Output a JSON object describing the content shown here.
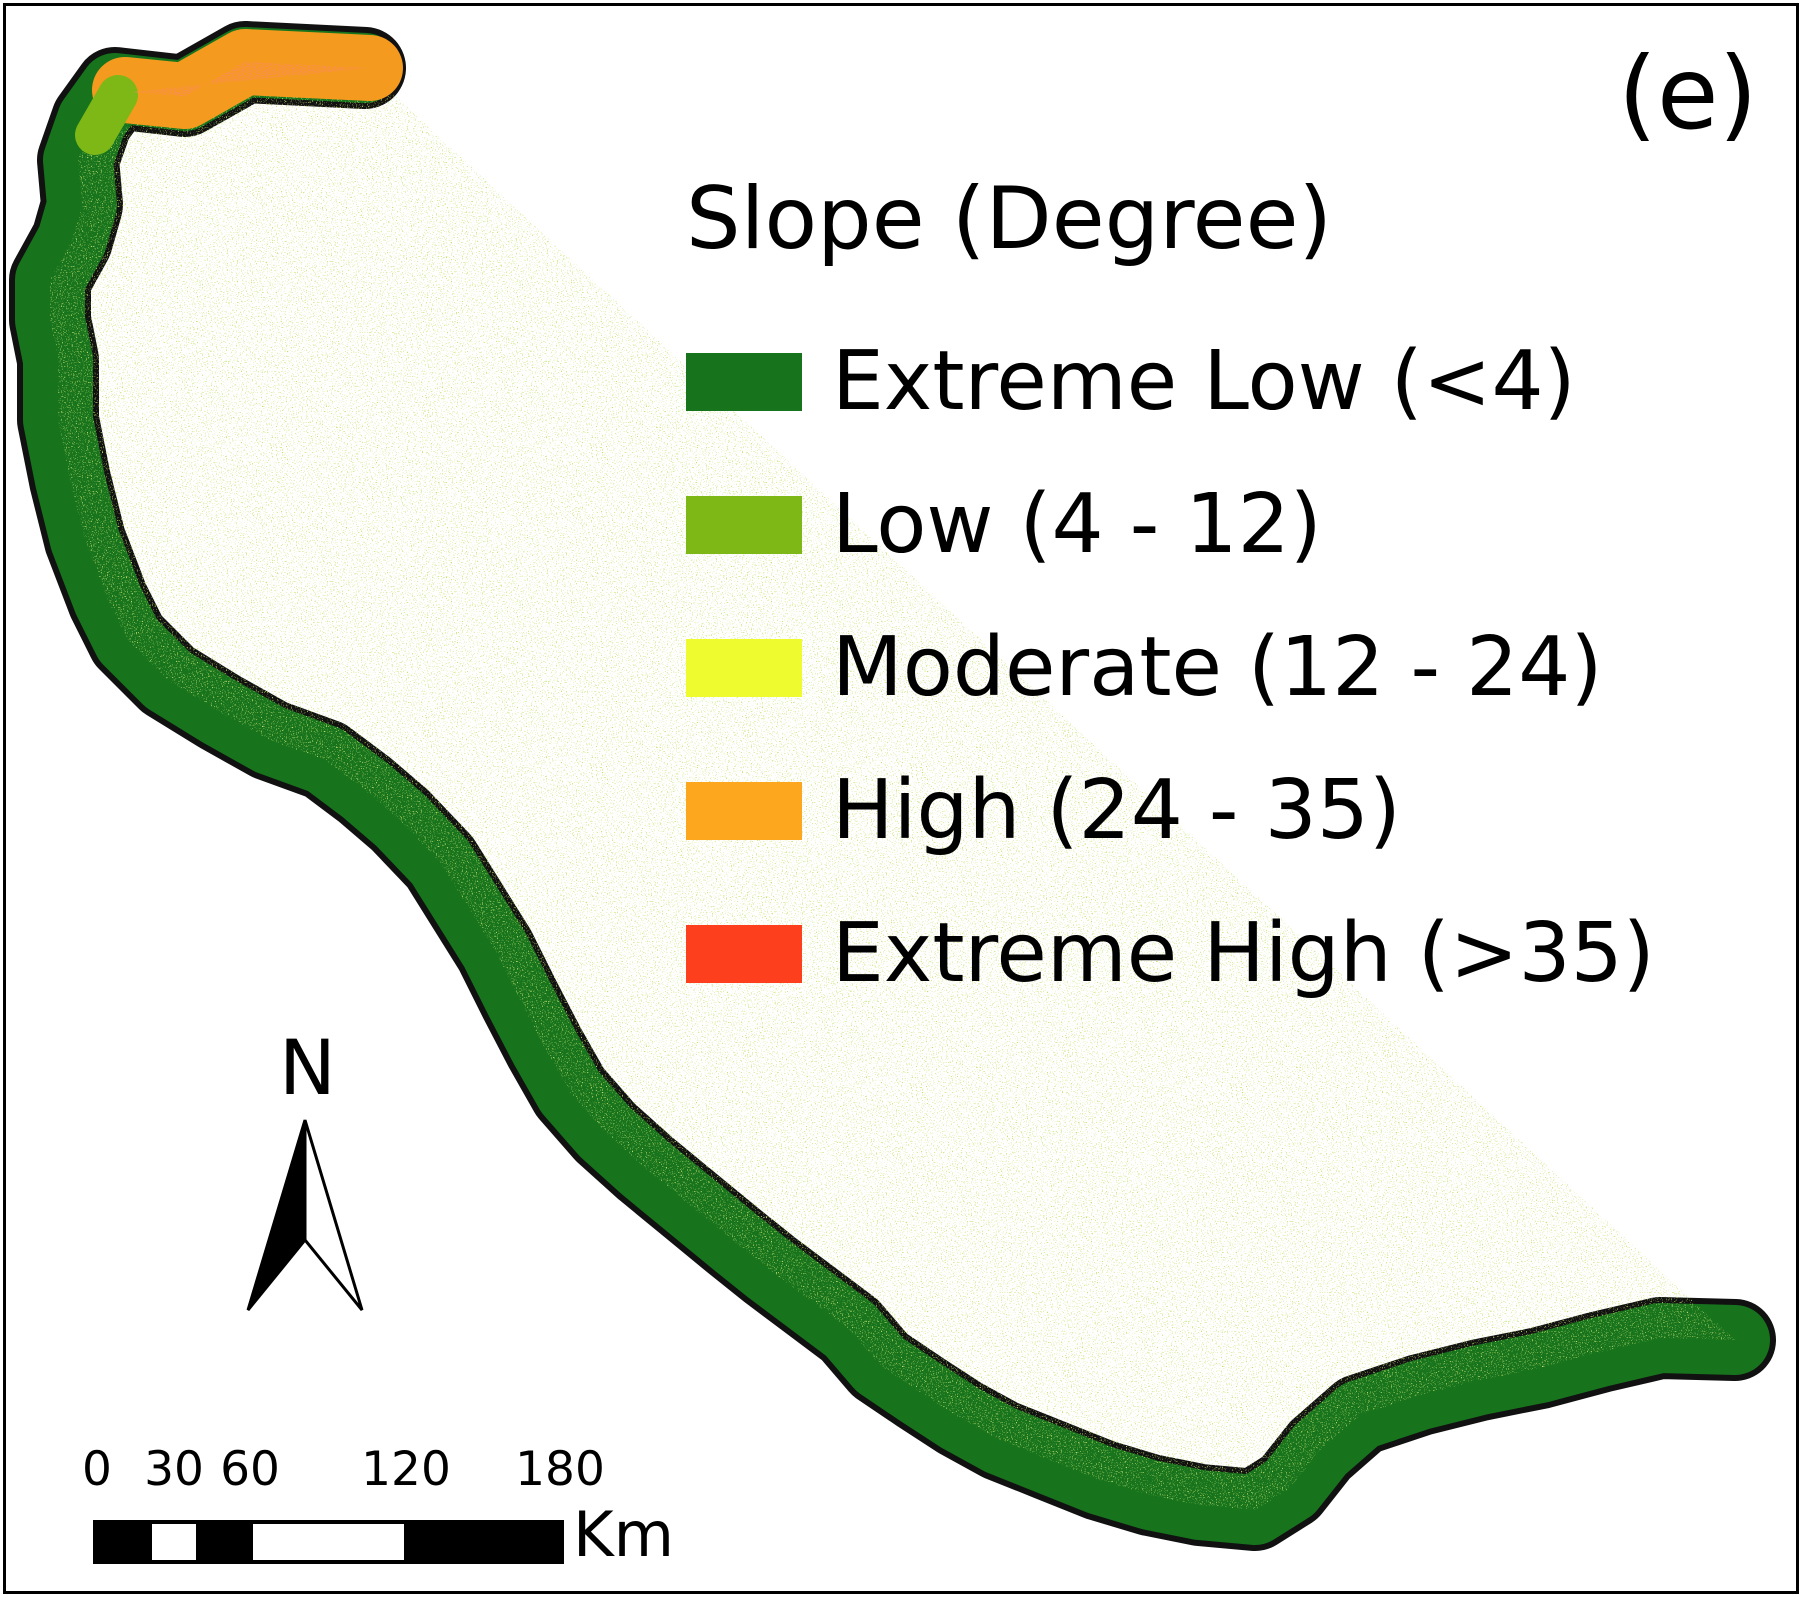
{
  "panel_label": "(e)",
  "legend": {
    "title": "Slope (Degree)",
    "items": [
      {
        "label": "Extreme Low (<4)",
        "color": "#17741d"
      },
      {
        "label": "Low (4 - 12)",
        "color": "#7db817"
      },
      {
        "label": "Moderate (12 - 24)",
        "color": "#eefc2f"
      },
      {
        "label": "High (24 - 35)",
        "color": "#fca71e"
      },
      {
        "label": "Extreme High (>35)",
        "color": "#fe3f1e"
      }
    ]
  },
  "north_arrow": {
    "letter": "N"
  },
  "scale_bar": {
    "ticks": [
      "0",
      "30",
      "60",
      "120",
      "180"
    ],
    "unit": "Km"
  },
  "colors": {
    "route_outline": "#111111",
    "route_fill": "#17741d",
    "upland_fill": "#f49a1e",
    "upland_speckle": "#fe3f1e"
  }
}
